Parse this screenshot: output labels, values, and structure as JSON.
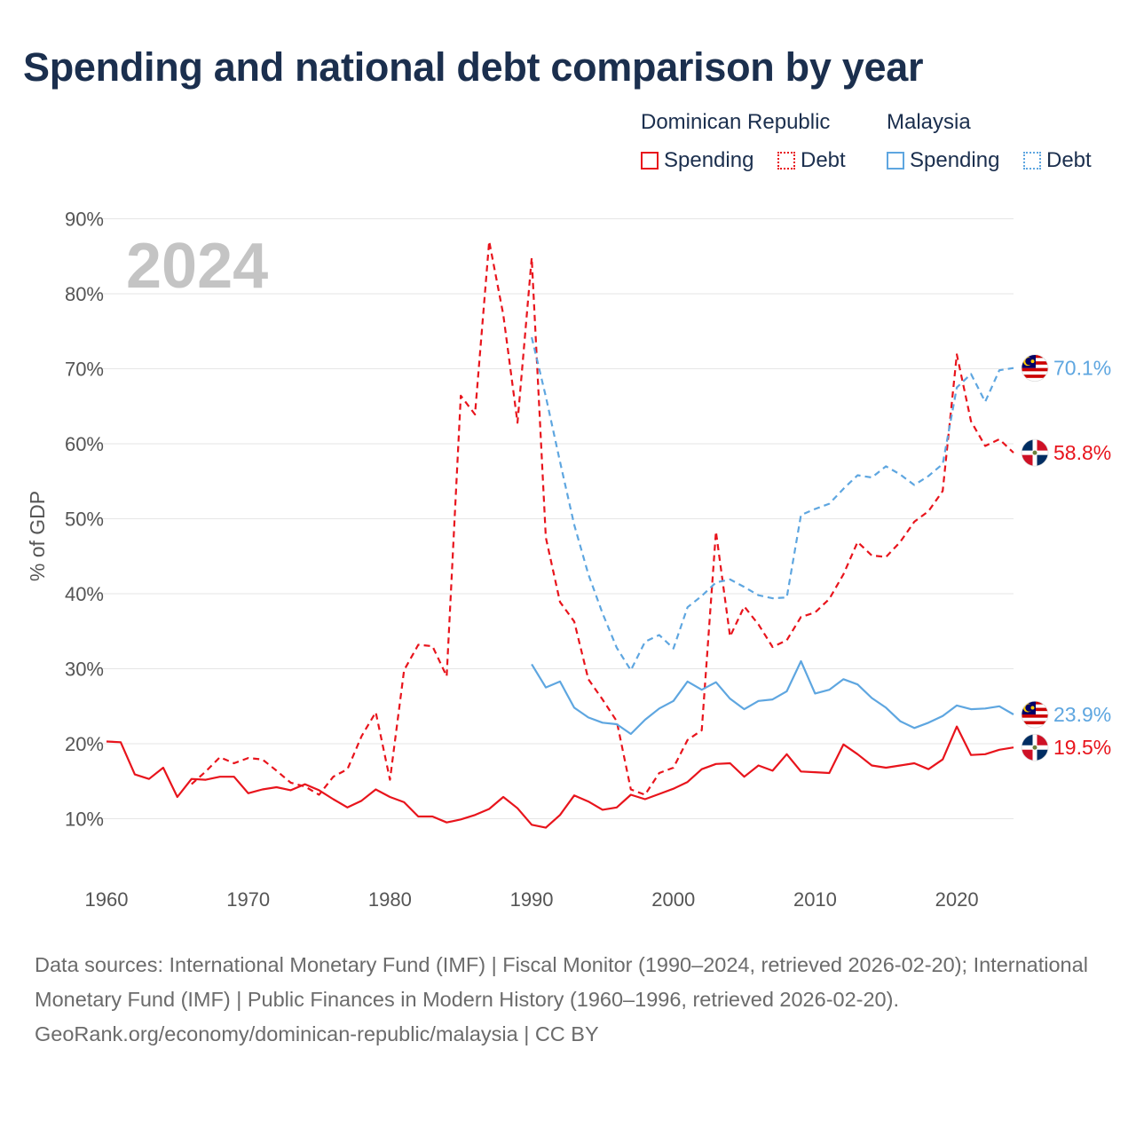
{
  "title": "Spending and national debt comparison by year",
  "legend": {
    "groups": [
      {
        "country": "Dominican Republic",
        "color": "#e8141c",
        "items": [
          {
            "label": "Spending",
            "style": "solid"
          },
          {
            "label": "Debt",
            "style": "dotted"
          }
        ]
      },
      {
        "country": "Malaysia",
        "color": "#5ea6e0",
        "items": [
          {
            "label": "Spending",
            "style": "solid"
          },
          {
            "label": "Debt",
            "style": "dotted"
          }
        ]
      }
    ]
  },
  "year_watermark": "2024",
  "footer": {
    "sources": "Data sources: International Monetary Fund (IMF) | Fiscal Monitor (1990–2024, retrieved 2026-02-20); International Monetary Fund (IMF) | Public Finances in Modern History (1960–1996, retrieved 2026-02-20).",
    "attribution": "GeoRank.org/economy/dominican-republic/malaysia | CC BY"
  },
  "chart_data": {
    "type": "line",
    "title": "Spending and national debt comparison by year",
    "xlabel": "",
    "ylabel": "% of GDP",
    "xlim": [
      1960,
      2024
    ],
    "ylim": [
      4,
      90
    ],
    "x_ticks": [
      1960,
      1970,
      1980,
      1990,
      2000,
      2010,
      2020
    ],
    "y_ticks": [
      10,
      20,
      30,
      40,
      50,
      60,
      70,
      80,
      90
    ],
    "y_tick_labels": [
      "10%",
      "20%",
      "30%",
      "40%",
      "50%",
      "60%",
      "70%",
      "80%",
      "90%"
    ],
    "x_tick_labels": [
      "1960",
      "1970",
      "1980",
      "1990",
      "2000",
      "2010",
      "2020"
    ],
    "grid": true,
    "series": [
      {
        "name": "Dominican Republic Spending",
        "color": "#e8141c",
        "dash": "solid",
        "end_label": "19.5%",
        "end_flag": "dominican-republic-flag",
        "x_start": 1960,
        "values": [
          20.3,
          20.2,
          15.9,
          15.3,
          16.8,
          12.9,
          15.3,
          15.2,
          15.6,
          15.6,
          13.4,
          13.9,
          14.2,
          13.8,
          14.6,
          13.8,
          12.6,
          11.5,
          12.4,
          13.9,
          12.9,
          12.2,
          10.3,
          10.3,
          9.5,
          9.9,
          10.5,
          11.3,
          12.9,
          11.4,
          9.2,
          8.8,
          10.5,
          13.1,
          12.3,
          11.2,
          11.5,
          13.2,
          12.6,
          13.3,
          14.0,
          14.9,
          16.6,
          17.3,
          17.4,
          15.6,
          17.1,
          16.4,
          18.6,
          16.3,
          16.2,
          16.1,
          19.9,
          18.6,
          17.1,
          16.8,
          17.1,
          17.4,
          16.6,
          17.9,
          22.3,
          18.5,
          18.6,
          19.2,
          19.5
        ]
      },
      {
        "name": "Dominican Republic Debt",
        "color": "#e8141c",
        "dash": "dashed",
        "end_label": "58.8%",
        "end_flag": "dominican-republic-flag",
        "x_start": 1966,
        "values": [
          14.6,
          16.3,
          18.2,
          17.4,
          18.1,
          17.9,
          16.4,
          14.8,
          14.3,
          13.2,
          15.6,
          16.6,
          21.0,
          24.2,
          15.2,
          29.8,
          33.2,
          33.0,
          29.0,
          66.4,
          63.9,
          87.0,
          77.2,
          62.8,
          84.8,
          47.5,
          38.9,
          36.3,
          28.6,
          25.9,
          23.0,
          13.9,
          13.2,
          16.1,
          16.8,
          20.5,
          21.8,
          48.3,
          34.3,
          38.3,
          35.9,
          32.9,
          33.8,
          36.9,
          37.5,
          39.3,
          42.6,
          46.9,
          45.1,
          44.9,
          46.9,
          49.6,
          51.0,
          53.7,
          71.9,
          63.0,
          59.7,
          60.6,
          58.8
        ]
      },
      {
        "name": "Malaysia Spending",
        "color": "#5ea6e0",
        "dash": "solid",
        "end_label": "23.9%",
        "end_flag": "malaysia-flag",
        "x_start": 1990,
        "values": [
          30.6,
          27.5,
          28.3,
          24.8,
          23.5,
          22.8,
          22.6,
          21.3,
          23.2,
          24.7,
          25.7,
          28.3,
          27.2,
          28.2,
          26.0,
          24.6,
          25.7,
          25.9,
          27.0,
          31.0,
          26.7,
          27.2,
          28.6,
          27.9,
          26.1,
          24.8,
          23.0,
          22.1,
          22.8,
          23.7,
          25.1,
          24.6,
          24.7,
          25.0,
          23.9
        ]
      },
      {
        "name": "Malaysia Debt",
        "color": "#5ea6e0",
        "dash": "dashed",
        "end_label": "70.1%",
        "end_flag": "malaysia-flag",
        "x_start": 1990,
        "values": [
          74.2,
          66.3,
          57.6,
          49.2,
          42.6,
          37.4,
          32.8,
          29.8,
          33.6,
          34.5,
          32.7,
          38.2,
          39.7,
          41.5,
          41.9,
          40.9,
          39.8,
          39.4,
          39.5,
          50.5,
          51.3,
          52.0,
          54.0,
          55.8,
          55.5,
          57.0,
          55.9,
          54.5,
          55.7,
          57.3,
          67.5,
          69.3,
          65.6,
          69.8,
          70.1
        ]
      }
    ]
  }
}
